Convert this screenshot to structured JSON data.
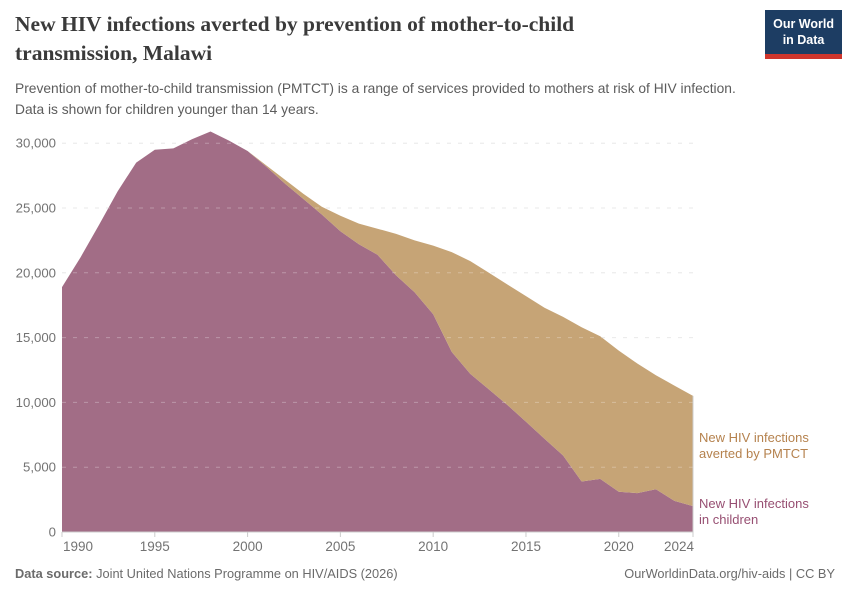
{
  "header": {
    "title": "New HIV infections averted by prevention of mother-to-child transmission, Malawi",
    "subtitle": "Prevention of mother-to-child transmission (PMTCT) is a range of services provided to mothers at risk of HIV infection. Data is shown for children younger than 14 years.",
    "logo": {
      "line1": "Our World",
      "line2": "in Data",
      "bg_color": "#1d3d63",
      "bar_color": "#cf352c"
    }
  },
  "chart_data": {
    "type": "area",
    "stacked": true,
    "title": "New HIV infections averted by prevention of mother-to-child transmission, Malawi",
    "xlabel": "",
    "ylabel": "",
    "ylim": [
      0,
      30000
    ],
    "yticks": [
      0,
      5000,
      10000,
      15000,
      20000,
      25000,
      30000
    ],
    "xticks": [
      1990,
      1995,
      2000,
      2005,
      2010,
      2015,
      2020,
      2024
    ],
    "grid": "horizontal-dashed",
    "legend_position": "inline-right-labels",
    "x": [
      1990,
      1991,
      1992,
      1993,
      1994,
      1995,
      1996,
      1997,
      1998,
      1999,
      2000,
      2001,
      2002,
      2003,
      2004,
      2005,
      2006,
      2007,
      2008,
      2009,
      2010,
      2011,
      2012,
      2013,
      2014,
      2015,
      2016,
      2017,
      2018,
      2019,
      2020,
      2021,
      2022,
      2023,
      2024
    ],
    "series": [
      {
        "name": "New HIV infections in children",
        "area_color": "#a26d86",
        "label_color": "#974f72",
        "values": [
          18900,
          21200,
          23700,
          26300,
          28500,
          29500,
          29600,
          30300,
          30900,
          30200,
          29400,
          28200,
          26900,
          25700,
          24500,
          23200,
          22200,
          21400,
          19800,
          18500,
          16800,
          13900,
          12200,
          11000,
          9800,
          8500,
          7200,
          5900,
          3900,
          4100,
          3100,
          3000,
          3300,
          2400,
          2000
        ]
      },
      {
        "name": "New HIV infections averted by PMTCT",
        "area_color": "#c6a476",
        "label_color": "#b5824e",
        "values": [
          0,
          0,
          0,
          0,
          0,
          0,
          0,
          0,
          0,
          0,
          0,
          100,
          300,
          400,
          600,
          1200,
          1600,
          2000,
          3200,
          4000,
          5300,
          7700,
          8700,
          9000,
          9300,
          9700,
          10100,
          10700,
          11900,
          11000,
          10900,
          10000,
          8800,
          8900,
          8500
        ]
      }
    ],
    "axis_style": {
      "grid_color": "#e2e2e2",
      "axis_color": "#cccccc",
      "tick_label_color": "#737373"
    }
  },
  "series_labels": {
    "averted_line1": "New HIV infections",
    "averted_line2": "averted by PMTCT",
    "children_line1": "New HIV infections",
    "children_line2": "in children"
  },
  "footer": {
    "source_label": "Data source:",
    "source_text": " Joint United Nations Programme on HIV/AIDS (2026)",
    "rights": "OurWorldinData.org/hiv-aids | CC BY"
  }
}
